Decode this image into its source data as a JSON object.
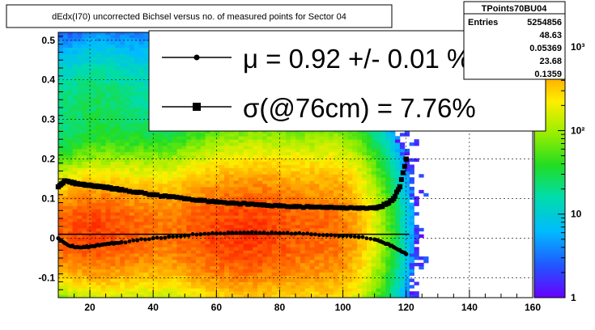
{
  "chart_data": {
    "type": "heatmap",
    "title": "dEdx(I70) uncorrected Bichsel versus no. of measured points for Sector 04",
    "xlim": [
      10,
      160
    ],
    "ylim": [
      -0.15,
      0.52
    ],
    "x_ticks": [
      20,
      40,
      60,
      80,
      100,
      120,
      140,
      160
    ],
    "y_ticks": [
      -0.1,
      0,
      0.1,
      0.2,
      0.3,
      0.4,
      0.5
    ],
    "x_tick_labels": [
      "20",
      "40",
      "60",
      "80",
      "100",
      "120",
      "140",
      "160"
    ],
    "y_tick_labels": [
      "-0.1",
      "0",
      "0.1",
      "0.2",
      "0.3",
      "0.4",
      "0.5"
    ],
    "grid": true,
    "colorbar": {
      "scale": "log",
      "range": [
        1,
        1500
      ],
      "tick_labels": [
        "1",
        "10",
        "10²",
        "10³"
      ],
      "tick_values": [
        1,
        10,
        100,
        1000
      ]
    },
    "stats_box": {
      "name": "TPoints70BU04",
      "entries_label": "Entries",
      "entries_value": "5254856",
      "values": [
        "48.63",
        "0.05369",
        "23.68",
        "0.1359"
      ]
    },
    "legend": {
      "placement": "top-right",
      "entries": [
        {
          "marker": "circle",
          "text": "μ  =  0.92 +/-  0.01 %"
        },
        {
          "marker": "square",
          "text": "σ(@76cm) =  7.76%"
        }
      ]
    },
    "series": [
      {
        "marker": "circle",
        "x": [
          10,
          12,
          14,
          16,
          18,
          20,
          22,
          24,
          26,
          28,
          30,
          35,
          40,
          45,
          50,
          55,
          60,
          65,
          70,
          75,
          80,
          85,
          90,
          95,
          100,
          105,
          110,
          112,
          114,
          116,
          118,
          120
        ],
        "y": [
          0.0,
          -0.012,
          -0.02,
          -0.022,
          -0.022,
          -0.021,
          -0.018,
          -0.016,
          -0.014,
          -0.012,
          -0.01,
          -0.005,
          0.0,
          0.004,
          0.007,
          0.01,
          0.012,
          0.014,
          0.014,
          0.014,
          0.013,
          0.012,
          0.01,
          0.008,
          0.006,
          0.003,
          -0.003,
          -0.008,
          -0.014,
          -0.022,
          -0.03,
          -0.04
        ]
      },
      {
        "marker": "square",
        "x": [
          10,
          12,
          14,
          16,
          18,
          20,
          22,
          24,
          26,
          28,
          30,
          35,
          40,
          45,
          50,
          55,
          60,
          65,
          70,
          75,
          80,
          85,
          90,
          95,
          100,
          105,
          110,
          112,
          114,
          116,
          118,
          120
        ],
        "y": [
          0.13,
          0.145,
          0.142,
          0.138,
          0.136,
          0.134,
          0.132,
          0.13,
          0.127,
          0.125,
          0.123,
          0.116,
          0.11,
          0.105,
          0.1,
          0.096,
          0.092,
          0.089,
          0.086,
          0.084,
          0.082,
          0.08,
          0.079,
          0.078,
          0.077,
          0.076,
          0.077,
          0.08,
          0.088,
          0.1,
          0.13,
          0.2
        ]
      }
    ],
    "reference_line_y": 0.01,
    "density_model": {
      "count_max": 1500,
      "ridges": [
        {
          "y": 0.015,
          "sigma": 0.075,
          "weight": 1.0
        },
        {
          "y": 0.33,
          "sigma": 0.09,
          "weight": 0.018
        }
      ]
    }
  }
}
